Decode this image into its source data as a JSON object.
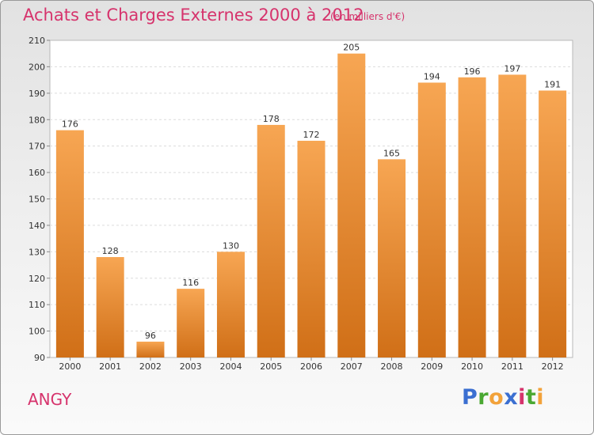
{
  "title": "Achats et Charges Externes 2000 à 2012",
  "subtitle": "(en milliers d'€)",
  "commune": "ANGY",
  "logo": {
    "letters": [
      "P",
      "r",
      "o",
      "x",
      "i",
      "t",
      "i"
    ],
    "colors": [
      "#3b6fd1",
      "#4aa832",
      "#f2a23a",
      "#3b6fd1",
      "#d6336c",
      "#4aa832",
      "#f2a23a"
    ]
  },
  "colors": {
    "bar_top": "#f7a653",
    "bar_bottom": "#d06f17",
    "accent": "#d6336c"
  },
  "chart_data": {
    "type": "bar",
    "title": "Achats et Charges Externes 2000 à 2012",
    "xlabel": "",
    "ylabel": "(en milliers d'€)",
    "categories": [
      "2000",
      "2001",
      "2002",
      "2003",
      "2004",
      "2005",
      "2006",
      "2007",
      "2008",
      "2009",
      "2010",
      "2011",
      "2012"
    ],
    "values": [
      176,
      128,
      96,
      116,
      130,
      178,
      172,
      205,
      165,
      194,
      196,
      197,
      191
    ],
    "ylim": [
      90,
      210
    ],
    "yticks": [
      90,
      100,
      110,
      120,
      130,
      140,
      150,
      160,
      170,
      180,
      190,
      200,
      210
    ],
    "grid": true
  }
}
